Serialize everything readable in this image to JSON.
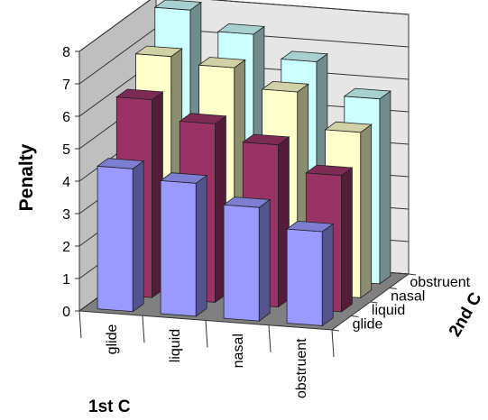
{
  "chart_data": {
    "type": "bar",
    "subtype": "3d-grid-column",
    "ylabel": "Penalty",
    "xlabel": "1st C",
    "zlabel": "2nd C",
    "ylim": [
      0,
      8
    ],
    "yticks": [
      "0",
      "1",
      "2",
      "3",
      "4",
      "5",
      "6",
      "7",
      "8"
    ],
    "x_categories": [
      "glide",
      "liquid",
      "nasal",
      "obstruent"
    ],
    "z_categories": [
      "glide",
      "liquid",
      "nasal",
      "obstruent"
    ],
    "grid": true,
    "series": [
      {
        "name": "glide",
        "color": "#9999ff",
        "values": [
          4.4,
          4.1,
          3.5,
          2.9
        ]
      },
      {
        "name": "liquid",
        "color": "#993366",
        "values": [
          6.1,
          5.5,
          5.0,
          4.2
        ]
      },
      {
        "name": "nasal",
        "color": "#ffffcc",
        "values": [
          7.0,
          6.8,
          6.2,
          5.1
        ]
      },
      {
        "name": "obstruent",
        "color": "#ccffff",
        "values": [
          8.0,
          7.4,
          6.7,
          5.7
        ]
      }
    ]
  }
}
